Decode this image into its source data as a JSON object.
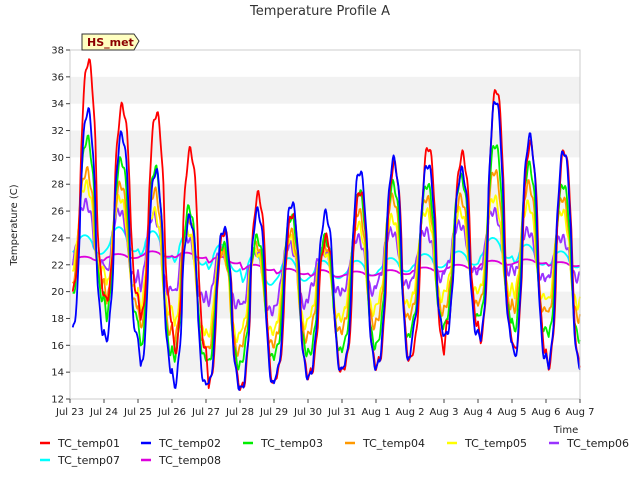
{
  "chart_data": {
    "type": "line",
    "title": "Temperature Profile A",
    "xlabel": "Time",
    "ylabel": "Temperature (C)",
    "ylim": [
      12,
      38
    ],
    "yticks": [
      12,
      14,
      16,
      18,
      20,
      22,
      24,
      26,
      28,
      30,
      32,
      34,
      36,
      38
    ],
    "xlim": [
      "Jul 23",
      "Aug 7"
    ],
    "xticks": [
      "Jul 23",
      "Jul 24",
      "Jul 25",
      "Jul 26",
      "Jul 27",
      "Jul 28",
      "Jul 29",
      "Jul 30",
      "Jul 31",
      "Aug 1",
      "Aug 2",
      "Aug 3",
      "Aug 4",
      "Aug 5",
      "Aug 6",
      "Aug 7"
    ],
    "grid": "horizontal bands",
    "legend_position": "bottom",
    "annotation": "HS_met",
    "series": [
      {
        "name": "TC_temp01",
        "color": "#ff0000",
        "x": [
          "Jul 23",
          "Jul 24",
          "Jul 25",
          "Jul 26",
          "Jul 27",
          "Jul 28",
          "Jul 29",
          "Jul 30",
          "Jul 31",
          "Aug 1",
          "Aug 2",
          "Aug 3",
          "Aug 4",
          "Aug 5",
          "Aug 6"
        ],
        "max": [
          37.2,
          33.8,
          33.3,
          30.5,
          24.5,
          27.2,
          25.8,
          24.0,
          27.5,
          29.5,
          30.8,
          30.2,
          35.1,
          31.0,
          30.5
        ],
        "min": [
          20.0,
          19.5,
          18.0,
          15.5,
          13.0,
          13.0,
          13.8,
          14.0,
          14.5,
          14.8,
          15.6,
          17.5,
          16.5,
          15.5,
          14.5
        ]
      },
      {
        "name": "TC_temp02",
        "color": "#0000ff",
        "x": [
          "Jul 23",
          "Jul 24",
          "Jul 25",
          "Jul 26",
          "Jul 27",
          "Jul 28",
          "Jul 29",
          "Jul 30",
          "Jul 31",
          "Aug 1",
          "Aug 2",
          "Aug 3",
          "Aug 4",
          "Aug 5",
          "Aug 6"
        ],
        "max": [
          33.5,
          31.7,
          29.0,
          25.5,
          24.7,
          26.0,
          26.6,
          25.8,
          29.0,
          29.8,
          29.5,
          29.0,
          34.3,
          31.5,
          30.5
        ],
        "min": [
          17.0,
          16.5,
          14.2,
          13.0,
          13.0,
          13.0,
          13.8,
          14.0,
          14.5,
          14.8,
          17.0,
          16.8,
          16.5,
          15.0,
          14.5
        ]
      },
      {
        "name": "TC_temp03",
        "color": "#00ee00",
        "x": [
          "Jul 23",
          "Jul 24",
          "Jul 25",
          "Jul 26",
          "Jul 27",
          "Jul 28",
          "Jul 29",
          "Jul 30",
          "Jul 31",
          "Aug 1",
          "Aug 2",
          "Aug 3",
          "Aug 4",
          "Aug 5",
          "Aug 6"
        ],
        "max": [
          31.4,
          29.8,
          29.2,
          26.2,
          23.5,
          24.0,
          25.6,
          24.0,
          27.5,
          28.0,
          28.0,
          28.5,
          31.0,
          29.4,
          28.0
        ],
        "min": [
          19.5,
          18.0,
          15.5,
          15.0,
          14.5,
          15.0,
          15.5,
          15.5,
          16.0,
          16.5,
          17.5,
          18.0,
          18.0,
          17.0,
          16.5
        ]
      },
      {
        "name": "TC_temp04",
        "color": "#ff9900",
        "x": [
          "Jul 23",
          "Jul 24",
          "Jul 25",
          "Jul 26",
          "Jul 27",
          "Jul 28",
          "Jul 29",
          "Jul 30",
          "Jul 31",
          "Aug 1",
          "Aug 2",
          "Aug 3",
          "Aug 4",
          "Aug 5",
          "Aug 6"
        ],
        "max": [
          29.0,
          28.0,
          27.5,
          25.5,
          23.0,
          23.5,
          24.5,
          23.5,
          26.0,
          27.0,
          27.0,
          27.0,
          29.0,
          28.0,
          27.0
        ],
        "min": [
          20.5,
          19.0,
          17.0,
          16.0,
          15.5,
          16.0,
          16.5,
          17.0,
          17.5,
          18.0,
          18.5,
          19.0,
          19.0,
          18.5,
          18.0
        ]
      },
      {
        "name": "TC_temp05",
        "color": "#ffff00",
        "x": [
          "Jul 23",
          "Jul 24",
          "Jul 25",
          "Jul 26",
          "Jul 27",
          "Jul 28",
          "Jul 29",
          "Jul 30",
          "Jul 31",
          "Aug 1",
          "Aug 2",
          "Aug 3",
          "Aug 4",
          "Aug 5",
          "Aug 6"
        ],
        "max": [
          28.0,
          27.0,
          26.0,
          24.5,
          23.0,
          23.0,
          24.0,
          23.0,
          25.0,
          25.5,
          26.0,
          26.0,
          27.0,
          26.5,
          26.0
        ],
        "min": [
          21.5,
          20.0,
          18.5,
          17.0,
          16.5,
          17.0,
          17.5,
          18.0,
          18.5,
          19.0,
          19.5,
          20.0,
          20.0,
          19.5,
          19.0
        ]
      },
      {
        "name": "TC_temp06",
        "color": "#9933ff",
        "x": [
          "Jul 23",
          "Jul 24",
          "Jul 25",
          "Jul 26",
          "Jul 27",
          "Jul 28",
          "Jul 29",
          "Jul 30",
          "Jul 31",
          "Aug 1",
          "Aug 2",
          "Aug 3",
          "Aug 4",
          "Aug 5",
          "Aug 6"
        ],
        "max": [
          26.6,
          26.0,
          25.7,
          24.0,
          23.0,
          23.0,
          23.5,
          23.0,
          24.0,
          24.5,
          24.5,
          25.0,
          26.0,
          24.5,
          24.0
        ],
        "min": [
          22.0,
          21.0,
          20.0,
          19.5,
          19.0,
          18.5,
          19.0,
          20.0,
          20.0,
          20.5,
          21.0,
          21.5,
          21.5,
          21.0,
          21.0
        ]
      },
      {
        "name": "TC_temp07",
        "color": "#00ffff",
        "x": [
          "Jul 23",
          "Jul 24",
          "Jul 25",
          "Jul 26",
          "Jul 27",
          "Jul 28",
          "Jul 29",
          "Jul 30",
          "Jul 31",
          "Aug 1",
          "Aug 2",
          "Aug 3",
          "Aug 4",
          "Aug 5",
          "Aug 6"
        ],
        "max": [
          24.2,
          24.8,
          24.5,
          24.3,
          23.5,
          22.8,
          22.5,
          22.3,
          22.3,
          22.5,
          22.8,
          23.0,
          24.0,
          23.5,
          23.0
        ],
        "min": [
          22.8,
          23.0,
          22.5,
          22.0,
          21.5,
          20.5,
          20.8,
          21.0,
          21.2,
          21.5,
          21.8,
          22.0,
          22.5,
          22.0,
          21.8
        ]
      },
      {
        "name": "TC_temp08",
        "color": "#dd00dd",
        "x": [
          "Jul 23",
          "Jul 24",
          "Jul 25",
          "Jul 26",
          "Jul 27",
          "Jul 28",
          "Jul 29",
          "Jul 30",
          "Jul 31",
          "Aug 1",
          "Aug 2",
          "Aug 3",
          "Aug 4",
          "Aug 5",
          "Aug 6"
        ],
        "max": [
          22.6,
          22.8,
          23.0,
          22.9,
          22.6,
          22.0,
          21.7,
          21.6,
          21.5,
          21.6,
          21.8,
          22.0,
          22.3,
          22.4,
          22.2
        ],
        "min": [
          22.3,
          22.5,
          22.6,
          22.5,
          22.1,
          21.6,
          21.3,
          21.1,
          21.2,
          21.3,
          21.5,
          21.7,
          22.0,
          22.1,
          21.9
        ]
      }
    ]
  }
}
